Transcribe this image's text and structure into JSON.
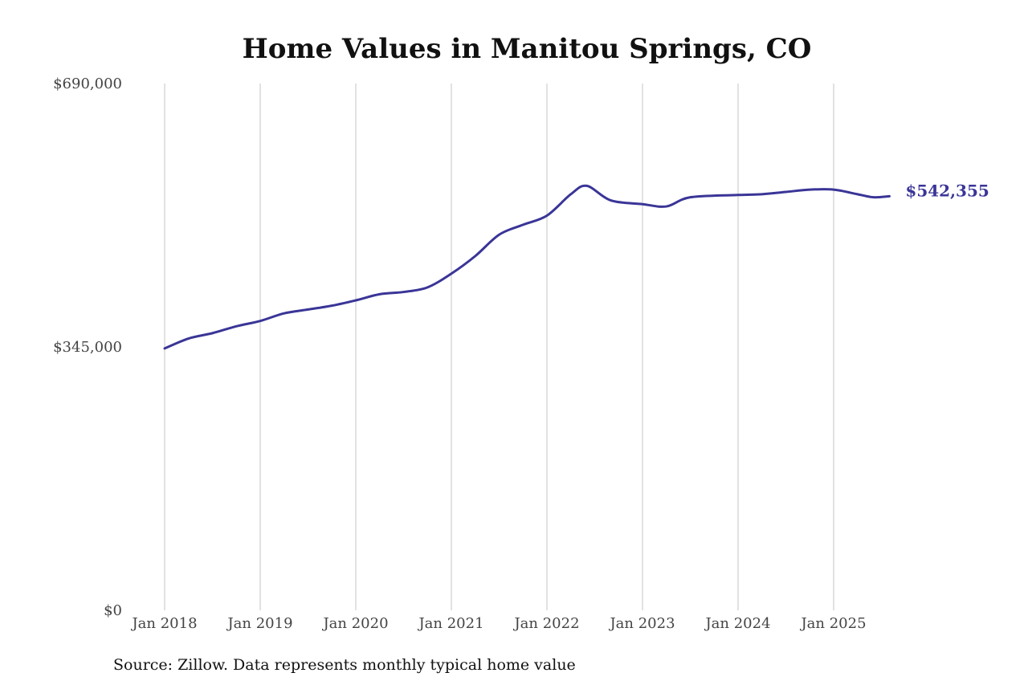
{
  "chart_data": {
    "type": "line",
    "title": "Home Values in Manitou Springs, CO",
    "source": "Source: Zillow. Data represents monthly typical home value",
    "xlabel": "",
    "ylabel": "",
    "ylim": [
      0,
      690000
    ],
    "yticks": [
      {
        "value": 0,
        "label": "$0"
      },
      {
        "value": 345000,
        "label": "$345,000"
      },
      {
        "value": 690000,
        "label": "$690,000"
      }
    ],
    "xlim": [
      "2018-01",
      "2025-08"
    ],
    "xticks": [
      {
        "date": "2018-01",
        "label": "Jan 2018"
      },
      {
        "date": "2019-01",
        "label": "Jan 2019"
      },
      {
        "date": "2020-01",
        "label": "Jan 2020"
      },
      {
        "date": "2021-01",
        "label": "Jan 2021"
      },
      {
        "date": "2022-01",
        "label": "Jan 2022"
      },
      {
        "date": "2023-01",
        "label": "Jan 2023"
      },
      {
        "date": "2024-01",
        "label": "Jan 2024"
      },
      {
        "date": "2025-01",
        "label": "Jan 2025"
      }
    ],
    "grid": "vertical",
    "line_color": "#3a3597",
    "end_label": "$542,355",
    "series": [
      {
        "name": "",
        "points": [
          [
            "2018-01",
            343000
          ],
          [
            "2018-04",
            356000
          ],
          [
            "2018-07",
            363000
          ],
          [
            "2018-10",
            372000
          ],
          [
            "2019-01",
            379000
          ],
          [
            "2019-04",
            389000
          ],
          [
            "2019-07",
            394000
          ],
          [
            "2019-10",
            399000
          ],
          [
            "2020-01",
            406000
          ],
          [
            "2020-04",
            414000
          ],
          [
            "2020-07",
            417000
          ],
          [
            "2020-10",
            423000
          ],
          [
            "2021-01",
            441000
          ],
          [
            "2021-04",
            464000
          ],
          [
            "2021-07",
            492000
          ],
          [
            "2021-10",
            505000
          ],
          [
            "2022-01",
            517000
          ],
          [
            "2022-04",
            545000
          ],
          [
            "2022-06",
            556000
          ],
          [
            "2022-09",
            537000
          ],
          [
            "2023-01",
            532000
          ],
          [
            "2023-04",
            529000
          ],
          [
            "2023-07",
            541000
          ],
          [
            "2024-01",
            544000
          ],
          [
            "2024-04",
            545000
          ],
          [
            "2024-07",
            548000
          ],
          [
            "2024-10",
            551000
          ],
          [
            "2025-01",
            551000
          ],
          [
            "2025-04",
            545000
          ],
          [
            "2025-06",
            541000
          ],
          [
            "2025-08",
            542355
          ]
        ]
      }
    ]
  }
}
